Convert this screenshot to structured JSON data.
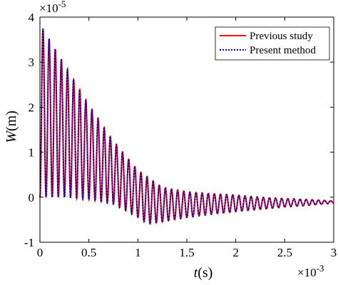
{
  "chart_data": {
    "type": "line",
    "title": "",
    "xlabel": {
      "italic": "t",
      "rest": "(s)"
    },
    "ylabel": {
      "italic": "W",
      "rest": "(m)"
    },
    "x_exponent": {
      "base": "×10",
      "power": "-3"
    },
    "y_exponent": {
      "base": "×10",
      "power": "-5"
    },
    "xlim": [
      0,
      3
    ],
    "ylim": [
      -1,
      4
    ],
    "xticks": [
      0,
      0.5,
      1,
      1.5,
      2,
      2.5,
      3
    ],
    "xtick_labels": [
      "0",
      "0.5",
      "1",
      "1.5",
      "2",
      "2.5",
      "3"
    ],
    "yticks": [
      -1,
      0,
      1,
      2,
      3,
      4
    ],
    "ytick_labels": [
      "-1",
      "0",
      "1",
      "2",
      "3",
      "4"
    ],
    "grid": false,
    "legend_position": "top-right",
    "signal": {
      "period": 0.0625,
      "zero_crossings": [
        0.0,
        0.032,
        0.063,
        0.094,
        0.125,
        0.157,
        0.188,
        0.219,
        0.25,
        0.282,
        0.313,
        0.344,
        0.375,
        0.407,
        0.438,
        0.469,
        0.5,
        0.532,
        0.563,
        0.594,
        0.625,
        0.657,
        0.688,
        0.719,
        0.75,
        0.782,
        0.813,
        0.844,
        0.875,
        0.907,
        0.938,
        0.969,
        1.0,
        1.032,
        1.063,
        1.094,
        1.125,
        1.157,
        1.188,
        1.219,
        1.25,
        1.282,
        1.313,
        1.344,
        1.375,
        1.407,
        1.438,
        1.469,
        1.5,
        1.532,
        1.563,
        1.594,
        1.625,
        1.657,
        1.688,
        1.719,
        1.75,
        1.782,
        1.813,
        1.844,
        1.875,
        1.907,
        1.938,
        1.969,
        2.0,
        2.032,
        2.063,
        2.094,
        2.125,
        2.157,
        2.188,
        2.219,
        2.25,
        2.282,
        2.313,
        2.344,
        2.375,
        2.407,
        2.438,
        2.469,
        2.5,
        2.532,
        2.563,
        2.594,
        2.625,
        2.657,
        2.688,
        2.719,
        2.75,
        2.782,
        2.813,
        2.844,
        2.875,
        2.907,
        2.938,
        2.969,
        3.0
      ],
      "peaks": {
        "t": [
          0.031,
          0.094,
          0.156,
          0.219,
          0.281,
          0.344,
          0.406,
          0.469,
          0.531,
          0.594,
          0.656,
          0.719,
          0.781,
          0.844,
          0.906,
          0.969,
          1.031,
          1.094,
          1.156,
          1.219,
          1.281,
          1.344,
          1.406,
          1.469,
          1.531,
          1.594,
          1.656,
          1.719,
          1.781,
          1.844,
          1.906,
          1.969,
          2.031,
          2.094,
          2.156,
          2.219,
          2.281,
          2.344,
          2.406,
          2.469,
          2.531,
          2.594,
          2.656,
          2.719,
          2.781,
          2.844,
          2.906,
          2.969
        ],
        "W": [
          3.75,
          3.5,
          3.3,
          3.1,
          2.85,
          2.6,
          2.3,
          2.1,
          1.85,
          1.6,
          1.35,
          1.2,
          0.95,
          0.75,
          0.55,
          0.4,
          0.28,
          0.18,
          0.1,
          0.05,
          0.02,
          0.0,
          -0.02,
          -0.03,
          -0.04,
          -0.04,
          -0.05,
          -0.05,
          -0.06,
          -0.06,
          -0.06,
          -0.07,
          -0.07,
          -0.07,
          -0.07,
          -0.08,
          -0.08,
          -0.08,
          -0.08,
          -0.08,
          -0.08,
          -0.08,
          -0.08,
          -0.08,
          -0.08,
          -0.08,
          -0.08,
          -0.08
        ]
      },
      "troughs_note": "oscillation between W=0 (lower envelope) and peaks early; later oscillates about a slightly negative mean",
      "envelope_upper": {
        "t": [
          0.03,
          0.25,
          0.5,
          0.75,
          1.0,
          1.25,
          1.5,
          1.75,
          2.0,
          2.25,
          2.5,
          2.75,
          3.0
        ],
        "W": [
          3.75,
          2.95,
          2.05,
          1.25,
          0.6,
          0.22,
          0.12,
          0.08,
          0.05,
          0.0,
          -0.03,
          -0.05,
          -0.08
        ]
      },
      "envelope_lower": {
        "t": [
          0.0,
          0.25,
          0.5,
          0.75,
          1.0,
          1.1,
          1.25,
          1.5,
          1.75,
          2.0,
          2.25,
          2.5,
          2.75,
          3.0
        ],
        "W": [
          0.0,
          0.0,
          -0.05,
          -0.15,
          -0.45,
          -0.6,
          -0.55,
          -0.45,
          -0.38,
          -0.32,
          -0.27,
          -0.22,
          -0.18,
          -0.13
        ]
      }
    },
    "series": [
      {
        "name": "Previous study",
        "color": "#ff0000",
        "style": "solid"
      },
      {
        "name": "Present method",
        "color": "#0000cc",
        "style": "dotted"
      }
    ]
  }
}
